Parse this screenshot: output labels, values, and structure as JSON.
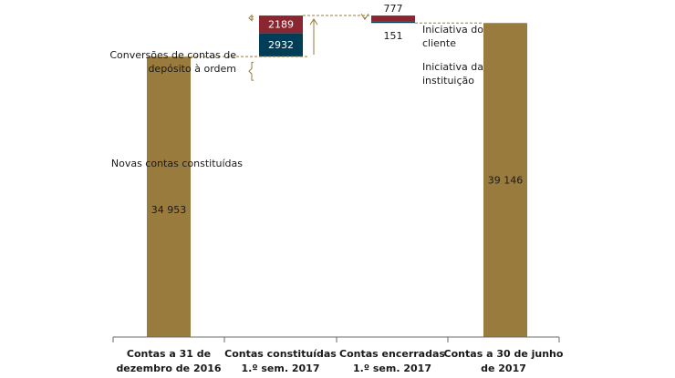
{
  "chart_data": {
    "type": "bar",
    "subtype": "waterfall",
    "categories": [
      [
        "Contas a 31 de",
        "dezembro de 2016"
      ],
      [
        "Contas constituídas",
        "1.º sem. 2017"
      ],
      [
        "Contas encerradas",
        "1.º sem. 2017"
      ],
      [
        "Contas a 30 de junho",
        "de 2017"
      ]
    ],
    "ylim": [
      0,
      41000
    ],
    "grid": false,
    "colors": {
      "total": "#9a7b3e",
      "new_accounts": "#003e57",
      "conversions": "#8b2630",
      "client_initiative": "#8b2630",
      "institution_initiative": "#003e57",
      "connector": "#9a7b3e"
    },
    "bars": [
      {
        "category_index": 0,
        "kind": "total",
        "base": 0,
        "value": 34953,
        "label": "34 953"
      },
      {
        "category_index": 1,
        "kind": "increase",
        "segment": "new_accounts",
        "base": 34953,
        "value": 2932,
        "label": "2932"
      },
      {
        "category_index": 1,
        "kind": "increase",
        "segment": "conversions",
        "base": 37885,
        "value": 2189,
        "label": "2189"
      },
      {
        "category_index": 2,
        "kind": "decrease",
        "segment": "institution_initiative",
        "base": 39146,
        "value": 151,
        "label": "151"
      },
      {
        "category_index": 2,
        "kind": "decrease",
        "segment": "client_initiative",
        "base": 39297,
        "value": 777,
        "label": "777"
      },
      {
        "category_index": 3,
        "kind": "total",
        "base": 0,
        "value": 39146,
        "label": "39 146"
      }
    ],
    "annotations": {
      "conversions": [
        "Conversões de contas de",
        "depósito à ordem"
      ],
      "new_accounts": [
        "Novas contas constituídas"
      ],
      "client_initiative": [
        "Iniciativa do",
        "cliente"
      ],
      "institution_initiative": [
        "Iniciativa da",
        "instituição"
      ]
    }
  }
}
